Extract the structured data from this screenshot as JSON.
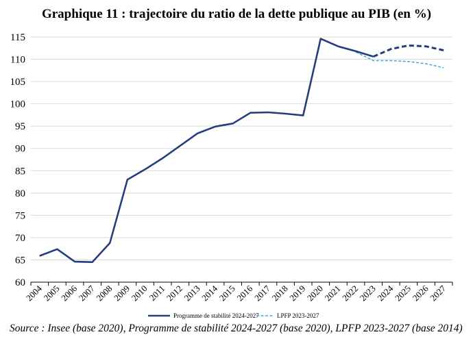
{
  "title": "Graphique 11 : trajectoire du ratio de la dette publique au PIB (en %)",
  "source": "Source : Insee (base 2020), Programme de stabilité 2024-2027 (base 2020), LPFP 2023-2027 (base 2014)",
  "colors": {
    "programme": "#253d7c",
    "lpfp": "#3aa6dd",
    "grid": "#d9d9d9",
    "axis": "#000000"
  },
  "chart_data": {
    "type": "line",
    "title": "Graphique 11 : trajectoire du ratio de la dette publique au PIB (en %)",
    "xlabel": "",
    "ylabel": "",
    "ylim": [
      60,
      115
    ],
    "yticks": [
      60,
      65,
      70,
      75,
      80,
      85,
      90,
      95,
      100,
      105,
      110,
      115
    ],
    "grid": true,
    "legend_position": "bottom",
    "categories": [
      "2004",
      "2005",
      "2006",
      "2007",
      "2008",
      "2009",
      "2010",
      "2011",
      "2012",
      "2013",
      "2014",
      "2015",
      "2016",
      "2017",
      "2018",
      "2019",
      "2020",
      "2021",
      "2022",
      "2023",
      "2024",
      "2025",
      "2026",
      "2027"
    ],
    "series": [
      {
        "name": "Programme de stabilité 2024-2027",
        "style": "solid-then-dashed",
        "dashed_from": "2023",
        "values": [
          65.9,
          67.4,
          64.6,
          64.5,
          68.8,
          83.0,
          85.3,
          87.8,
          90.6,
          93.4,
          94.9,
          95.6,
          98.0,
          98.1,
          97.8,
          97.4,
          114.6,
          112.9,
          111.8,
          110.6,
          112.3,
          113.1,
          112.9,
          112.0
        ]
      },
      {
        "name": "LPFP 2023-2027",
        "style": "dashed",
        "values": [
          null,
          null,
          null,
          null,
          null,
          null,
          null,
          null,
          null,
          null,
          null,
          null,
          null,
          null,
          null,
          null,
          null,
          null,
          111.6,
          109.7,
          109.7,
          109.5,
          109.0,
          108.1
        ]
      }
    ]
  }
}
